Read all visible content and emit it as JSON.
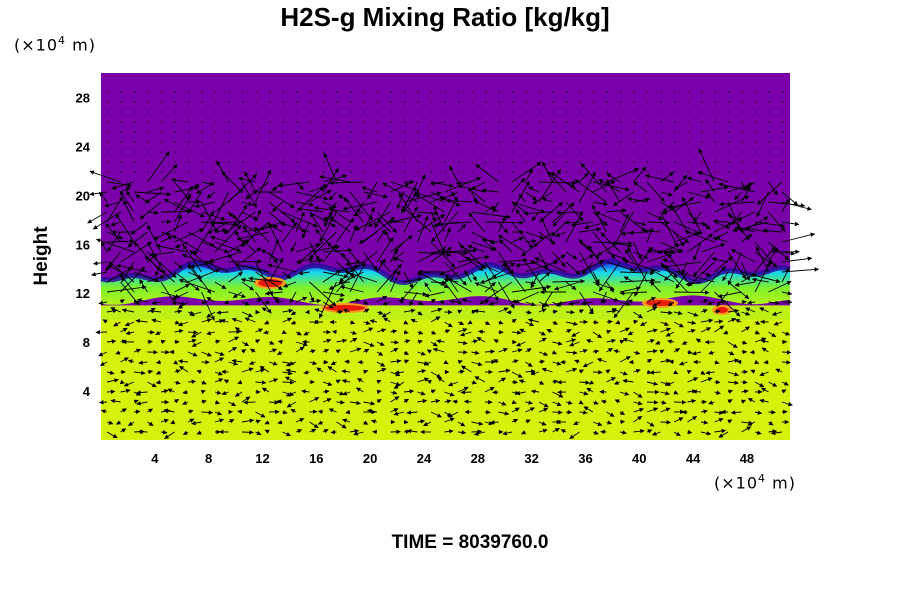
{
  "chart_data": {
    "type": "heatmap",
    "title": "H2S-g Mixing Ratio [kg/kg]",
    "ylabel": "Height",
    "y_unit_prefix": "(×10",
    "y_unit_exp": "4",
    "y_unit_suffix": " m)",
    "x_unit_prefix": "(×10",
    "x_unit_exp": "4",
    "x_unit_suffix": " m)",
    "xlim": [
      0,
      51.2
    ],
    "ylim": [
      0,
      30
    ],
    "x_ticks": [
      4,
      8,
      12,
      16,
      20,
      24,
      28,
      32,
      36,
      40,
      44,
      48
    ],
    "y_ticks": [
      4,
      8,
      12,
      16,
      20,
      24,
      28
    ],
    "colors": {
      "upper": "#7a00aa",
      "lower": "#d4f20a",
      "band_green": "#7ef02a",
      "band_cyan": "#14d7f0",
      "band_blue": "#1e1ee6",
      "band_dark": "#2a0a9a",
      "hot_red": "#e81a0a",
      "hot_orange": "#ff9a1e"
    },
    "layer_boundary_height": 11,
    "vector_field": true
  },
  "time_label": "TIME = 8039760.0"
}
